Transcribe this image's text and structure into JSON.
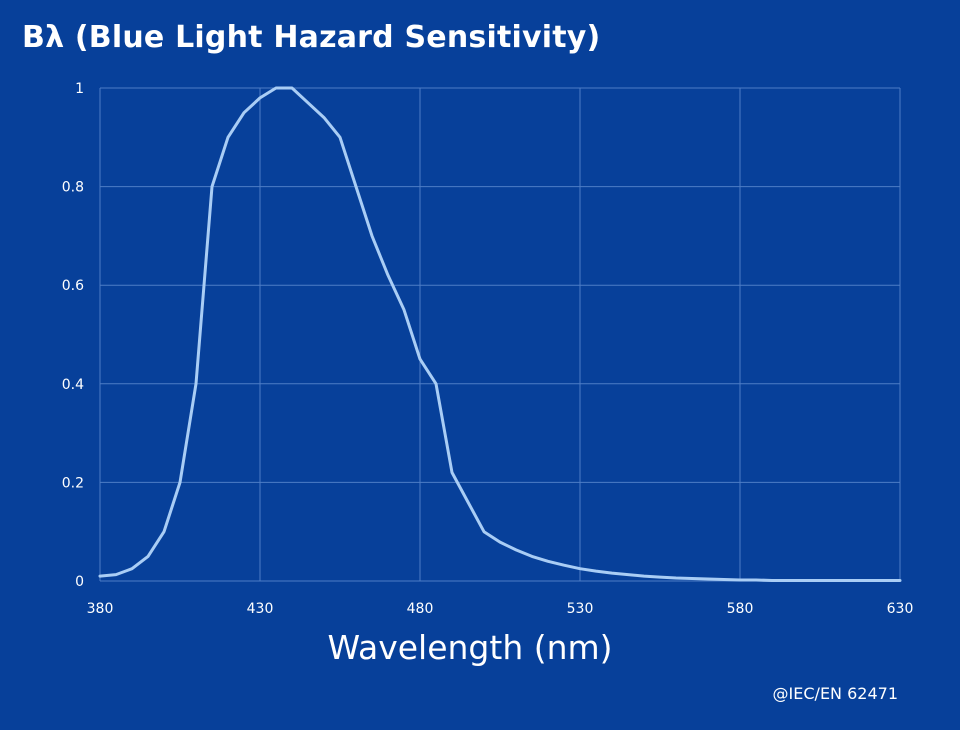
{
  "chart_data": {
    "type": "line",
    "title": "Bλ (Blue Light Hazard Sensitivity)",
    "xlabel": "Wavelength (nm)",
    "ylabel": "",
    "xlim": [
      380,
      630
    ],
    "ylim": [
      0,
      1
    ],
    "xticks": [
      380,
      430,
      480,
      530,
      580,
      630
    ],
    "yticks": [
      0,
      0.2,
      0.4,
      0.6,
      0.8,
      1
    ],
    "ytick_labels": [
      "0",
      "0.2",
      "0.4",
      "0.6",
      "0.8",
      "1"
    ],
    "grid": true,
    "line_color": "#a9cdf5",
    "background_color": "#07409a",
    "grid_color": "#4e7dc6",
    "series": [
      {
        "x": [
          380,
          385,
          390,
          395,
          400,
          405,
          410,
          415,
          420,
          425,
          430,
          435,
          440,
          445,
          450,
          455,
          460,
          465,
          470,
          475,
          480,
          485,
          490,
          495,
          500,
          505,
          510,
          515,
          520,
          525,
          530,
          535,
          540,
          545,
          550,
          555,
          560,
          565,
          570,
          575,
          580,
          585,
          590,
          595,
          600,
          610,
          620,
          630
        ],
        "y": [
          0.01,
          0.013,
          0.025,
          0.05,
          0.1,
          0.2,
          0.4,
          0.8,
          0.9,
          0.95,
          0.98,
          1.0,
          1.0,
          0.97,
          0.94,
          0.9,
          0.8,
          0.7,
          0.62,
          0.55,
          0.45,
          0.4,
          0.22,
          0.16,
          0.1,
          0.079,
          0.063,
          0.05,
          0.04,
          0.032,
          0.025,
          0.02,
          0.016,
          0.013,
          0.01,
          0.008,
          0.006,
          0.005,
          0.004,
          0.003,
          0.002,
          0.002,
          0.001,
          0.001,
          0.001,
          0.001,
          0.001,
          0.001
        ]
      }
    ]
  },
  "credit": "@IEC/EN 62471"
}
